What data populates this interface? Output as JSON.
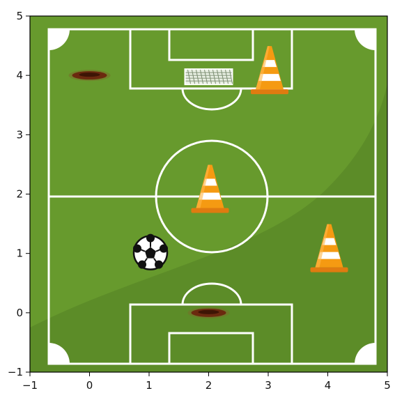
{
  "axes": {
    "xlim": [
      -1,
      5
    ],
    "ylim": [
      -1,
      5
    ],
    "x_ticks": [
      -1,
      0,
      1,
      2,
      3,
      4,
      5
    ],
    "y_ticks": [
      -1,
      0,
      1,
      2,
      3,
      4,
      5
    ],
    "x_tick_labels": [
      "−1",
      "0",
      "1",
      "2",
      "3",
      "4",
      "5"
    ],
    "y_tick_labels": [
      "−1",
      "0",
      "1",
      "2",
      "3",
      "4",
      "5"
    ]
  },
  "colors": {
    "grass": "#679a2d",
    "grass_dark": "#5a8a28",
    "lines": "#ffffff",
    "cone_orange": "#f59a12",
    "cone_stripe": "#ffffff",
    "hole": "#6b2a0f"
  },
  "objects": [
    {
      "kind": "cone",
      "x": 3.0,
      "y": 4.0
    },
    {
      "kind": "cone",
      "x": 2.0,
      "y": 2.0
    },
    {
      "kind": "cone",
      "x": 4.0,
      "y": 1.0
    },
    {
      "kind": "ball",
      "x": 1.0,
      "y": 1.0
    },
    {
      "kind": "hole",
      "x": 0.0,
      "y": 4.0
    },
    {
      "kind": "hole",
      "x": 2.0,
      "y": 0.0
    },
    {
      "kind": "goal",
      "x": 2.0,
      "y": 4.0
    }
  ]
}
